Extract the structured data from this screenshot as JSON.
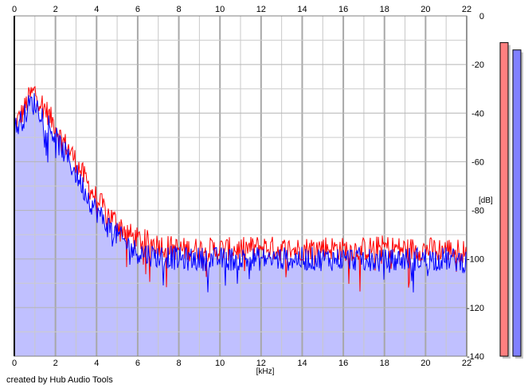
{
  "credit": "created by Hub Audio Tools",
  "chart_data": {
    "type": "line",
    "xlabel": "[kHz]",
    "ylabel": "[dB]",
    "xlim": [
      0,
      22
    ],
    "ylim": [
      -140,
      0
    ],
    "x_ticks": [
      0,
      2,
      4,
      6,
      8,
      10,
      12,
      14,
      16,
      18,
      20,
      22
    ],
    "x_tick_labels": [
      "0",
      "2",
      "4",
      "6",
      "8",
      "10",
      "12",
      "14",
      "16",
      "18",
      "20",
      "22"
    ],
    "y_ticks": [
      0,
      -20,
      -40,
      -60,
      -80,
      -100,
      -120,
      -140
    ],
    "y_tick_labels": [
      "0",
      "-20",
      "-40",
      "-60",
      "-80",
      "-100",
      "-120",
      "-140"
    ],
    "grid": true,
    "x_minor_step": 1,
    "y_minor_step": 10,
    "background_fill_color": "#c0c0ff",
    "series": [
      {
        "color": "#ff0000",
        "x": [
          0,
          0.25,
          0.5,
          0.75,
          1,
          1.25,
          1.5,
          1.75,
          2,
          2.25,
          2.5,
          2.75,
          3,
          3.25,
          3.5,
          3.75,
          4,
          4.25,
          4.5,
          4.75,
          5,
          5.25,
          5.5,
          5.75,
          6,
          6.5,
          7,
          7.5,
          8,
          9,
          10,
          11,
          12,
          13,
          14,
          15,
          16,
          17,
          18,
          19,
          20,
          21,
          22
        ],
        "values": [
          -45,
          -42,
          -38,
          -33,
          -31,
          -35,
          -38,
          -42,
          -45,
          -50,
          -53,
          -56,
          -60,
          -64,
          -68,
          -72,
          -75,
          -78,
          -81,
          -83,
          -85,
          -87,
          -89,
          -91,
          -92,
          -93,
          -94,
          -95,
          -96,
          -96,
          -96,
          -96,
          -95,
          -96,
          -96,
          -95,
          -96,
          -96,
          -95,
          -96,
          -96,
          -96,
          -97
        ]
      },
      {
        "color": "#0000ff",
        "x": [
          0,
          0.25,
          0.5,
          0.75,
          1,
          1.25,
          1.5,
          1.75,
          2,
          2.25,
          2.5,
          2.75,
          3,
          3.25,
          3.5,
          3.75,
          4,
          4.25,
          4.5,
          4.75,
          5,
          5.25,
          5.5,
          5.75,
          6,
          6.5,
          7,
          7.5,
          8,
          9,
          10,
          11,
          12,
          13,
          14,
          15,
          16,
          17,
          18,
          19,
          20,
          21,
          22
        ],
        "values": [
          -47,
          -44,
          -41,
          -36,
          -36,
          -39,
          -42,
          -46,
          -50,
          -54,
          -57,
          -61,
          -65,
          -69,
          -73,
          -77,
          -80,
          -83,
          -86,
          -88,
          -90,
          -92,
          -94,
          -96,
          -97,
          -98,
          -99,
          -99,
          -100,
          -100,
          -100,
          -100,
          -100,
          -100,
          -100,
          -100,
          -100,
          -100,
          -101,
          -100,
          -100,
          -100,
          -101
        ]
      }
    ],
    "level_meters": [
      {
        "color": "#ff8080",
        "level_db": -11
      },
      {
        "color": "#8080ff",
        "level_db": -14
      }
    ]
  }
}
